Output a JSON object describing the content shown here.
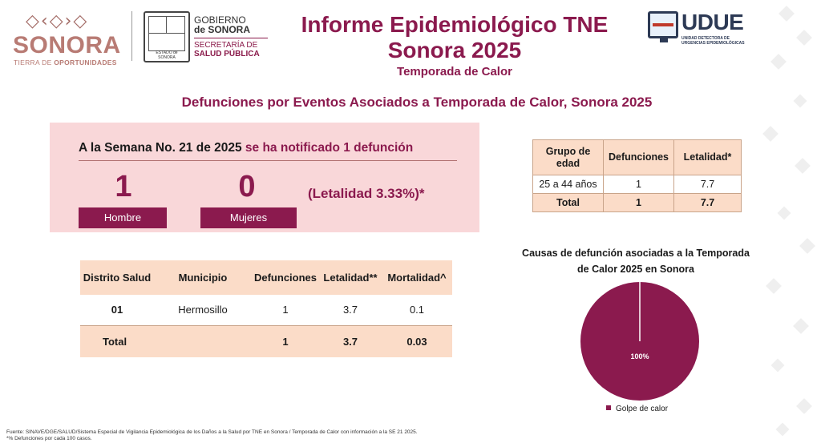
{
  "header": {
    "sonora_logo": {
      "glyphs": "◇‹◇›◇",
      "word": "SONORA",
      "tagline_prefix": "TIERRA DE ",
      "tagline_bold": "OPORTUNIDADES"
    },
    "gov_logo": {
      "shield_caption": "ESTADO de SONORA",
      "line1": "GOBIERNO",
      "line2": "de SONORA",
      "line3": "SECRETARÍA DE",
      "line4": "SALUD PÚBLICA"
    },
    "title_line1": "Informe Epidemiológico TNE",
    "title_line2": "Sonora 2025",
    "subtitle": "Temporada de Calor",
    "udue_logo": {
      "word": "UDUE",
      "sub1": "UNIDAD DETECTORA DE",
      "sub2": "URGENCIAS EPIDEMIOLÓGICAS"
    }
  },
  "section_title": "Defunciones por Eventos Asociados a Temporada de Calor, Sonora 2025",
  "summary": {
    "headline_prefix": "A la Semana No. 21 de 2025 ",
    "headline_highlight": "se ha notificado 1 defunción",
    "male_count": "1",
    "male_label": "Hombre",
    "female_count": "0",
    "female_label": "Mujeres",
    "letalidad": "(Letalidad 3.33%)*"
  },
  "age_table": {
    "headers": [
      "Grupo de edad",
      "Defunciones",
      "Letalidad*"
    ],
    "rows": [
      [
        "25 a 44 años",
        "1",
        "7.7"
      ]
    ],
    "total": [
      "Total",
      "1",
      "7.7"
    ]
  },
  "district_table": {
    "headers": [
      "Distrito Salud",
      "Municipio",
      "Defunciones",
      "Letalidad**",
      "Mortalidad^"
    ],
    "rows": [
      [
        "01",
        "Hermosillo",
        "1",
        "3.7",
        "0.1"
      ]
    ],
    "total": [
      "Total",
      "",
      "1",
      "3.7",
      "0.03"
    ]
  },
  "chart_data": {
    "type": "pie",
    "title": "Causas de defunción asociadas a la Temporada de Calor 2025 en Sonora",
    "title_line1": "Causas de defunción asociadas a la Temporada",
    "title_line2": "de Calor 2025 en Sonora",
    "categories": [
      "Golpe de calor"
    ],
    "values": [
      100
    ],
    "data_labels": [
      "100%"
    ],
    "colors": [
      "#8b1a4e"
    ],
    "legend_position": "bottom"
  },
  "footer": {
    "source_line1": "Fuente: SINAVE/DGE/SALUD/Sistema Especial de Vigilancia Epidemiológica de los Daños a la Salud por TNE en Sonora / Temporada de Calor con información a la SE 21 2025.",
    "source_line2": "*% Defunciones por cada 100 casos."
  },
  "colors": {
    "brand": "#8b1a4e",
    "summary_bg": "#f9d7d9",
    "table_header_bg": "#fbdcc8"
  }
}
